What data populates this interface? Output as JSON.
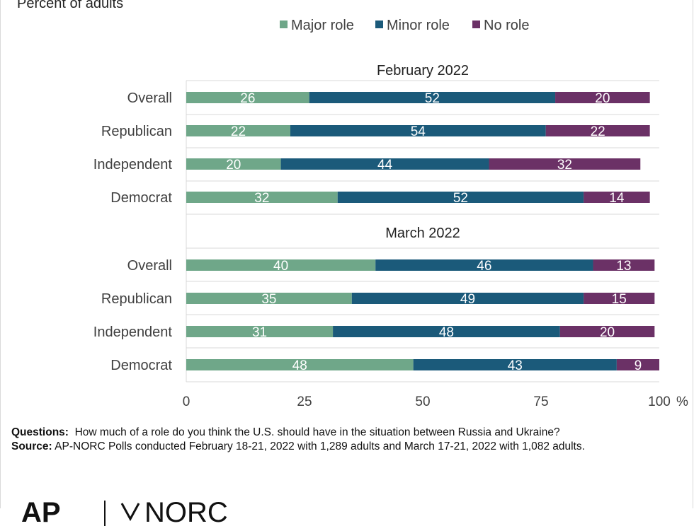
{
  "subtitle": "Percent of adults",
  "notes": {
    "questions_label": "Questions:",
    "questions_text": "How much of a role do you think the U.S. should have in the situation between Russia and Ukraine?",
    "source_label": "Source:",
    "source_text": "AP-NORC Polls conducted February 18-21, 2022 with 1,289 adults and March 17-21, 2022 with 1,082 adults."
  },
  "logo": {
    "text_left": "AP",
    "text_right": "NORC"
  },
  "colors": {
    "major": "#6fa789",
    "minor": "#1b5a7a",
    "none": "#6b3166",
    "grid": "#d9d9d9",
    "text": "#404040",
    "label": "#ffffff"
  },
  "chart_data": {
    "type": "bar",
    "orientation": "horizontal",
    "stacked": true,
    "legend_position": "top-center",
    "grid": true,
    "xlim": [
      0,
      100
    ],
    "xticks": [
      0,
      25,
      50,
      75,
      100
    ],
    "xunit": "%",
    "series": [
      {
        "name": "Major role"
      },
      {
        "name": "Minor role"
      },
      {
        "name": "No role"
      }
    ],
    "groups": [
      {
        "title": "February 2022",
        "categories": [
          "Overall",
          "Republican",
          "Independent",
          "Democrat"
        ],
        "values": [
          [
            26,
            52,
            20
          ],
          [
            22,
            54,
            22
          ],
          [
            20,
            44,
            32
          ],
          [
            32,
            52,
            14
          ]
        ]
      },
      {
        "title": "March 2022",
        "categories": [
          "Overall",
          "Republican",
          "Independent",
          "Democrat"
        ],
        "values": [
          [
            40,
            46,
            13
          ],
          [
            35,
            49,
            15
          ],
          [
            31,
            48,
            20
          ],
          [
            48,
            43,
            9
          ]
        ]
      }
    ]
  }
}
